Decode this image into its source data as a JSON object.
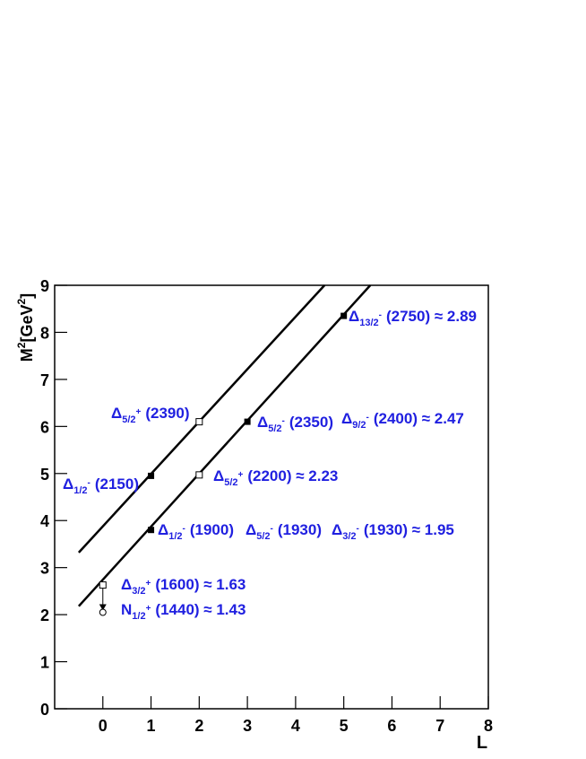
{
  "chart_data": {
    "type": "regge",
    "xlabel": "L",
    "ylabel": {
      "main": "M",
      "sup1": "2",
      "mid": "[GeV",
      "sup2": "2",
      "end": "]"
    },
    "xlim": [
      -1,
      8
    ],
    "ylim": [
      0,
      9
    ],
    "xticks": [
      0,
      1,
      2,
      3,
      4,
      5,
      6,
      7,
      8
    ],
    "yticks": [
      0,
      1,
      2,
      3,
      4,
      5,
      6,
      7,
      8,
      9
    ],
    "lines": [
      {
        "x": [
          -0.5,
          4.6
        ],
        "y": [
          3.32,
          9
        ]
      },
      {
        "x": [
          -0.5,
          5.55
        ],
        "y": [
          2.18,
          9
        ]
      }
    ],
    "points": [
      {
        "marker": "filled-square",
        "x": [
          1,
          1,
          3,
          5
        ],
        "y": [
          3.8,
          4.95,
          6.1,
          8.35
        ]
      },
      {
        "marker": "open-square",
        "x": [
          0,
          2,
          2
        ],
        "y": [
          2.63,
          4.97,
          6.1
        ]
      },
      {
        "marker": "open-circle",
        "x": [
          0
        ],
        "y": [
          2.05
        ]
      }
    ],
    "annotations": [
      {
        "symbol": "Δ",
        "sub": "13/2",
        "sup": "-",
        "text": "(2750) ≈ 2.89"
      },
      {
        "symbol": "Δ",
        "sub": "5/2",
        "sup": "+",
        "text": "(2390)"
      },
      {
        "symbol": "Δ",
        "sub": "5/2",
        "sup": "-",
        "text": "(2350)"
      },
      {
        "symbol": "Δ",
        "sub": "9/2",
        "sup": "-",
        "text": "(2400) ≈ 2.47"
      },
      {
        "symbol": "Δ",
        "sub": "1/2",
        "sup": "-",
        "text": "(2150)"
      },
      {
        "symbol": "Δ",
        "sub": "5/2",
        "sup": "+",
        "text": "(2200) ≈ 2.23"
      },
      {
        "symbol": "Δ",
        "sub": "1/2",
        "sup": "-",
        "text": "(1900)"
      },
      {
        "symbol": "Δ",
        "sub": "5/2",
        "sup": "-",
        "text": "(1930)"
      },
      {
        "symbol": "Δ",
        "sub": "3/2",
        "sup": "-",
        "text": "(1930) ≈ 1.95"
      },
      {
        "symbol": "Δ",
        "sub": "3/2",
        "sup": "+",
        "text": "(1600) ≈ 1.63"
      },
      {
        "symbol": "N",
        "sub": "1/2",
        "sup": "+",
        "text": "(1440) ≈ 1.43"
      }
    ],
    "annotation_color": "#2020e0"
  }
}
